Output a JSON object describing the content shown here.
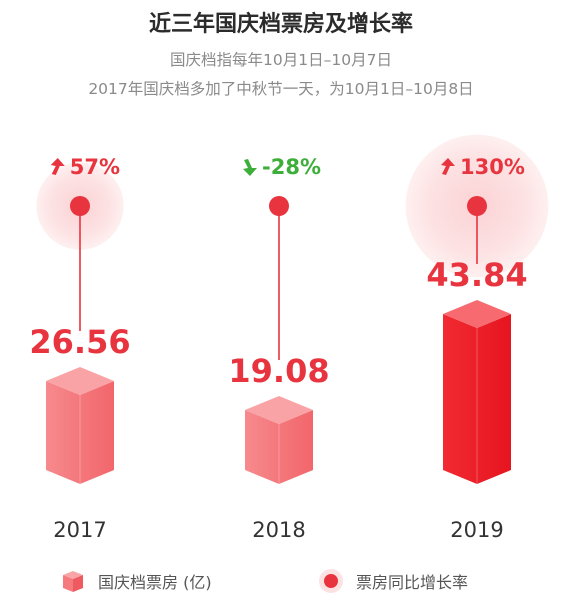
{
  "chart_data": {
    "type": "bar",
    "title": "近三年国庆档票房及增长率",
    "subtitle_lines": [
      "国庆档指每年10月1日–10月7日",
      "2017年国庆档多加了中秋节一天，为10月1日–10月8日"
    ],
    "categories": [
      "2017",
      "2018",
      "2019"
    ],
    "series": [
      {
        "name": "国庆档票房 (亿)",
        "values": [
          26.56,
          19.08,
          43.84
        ],
        "value_labels": [
          "26.56",
          "19.08",
          "43.84"
        ]
      },
      {
        "name": "票房同比增长率",
        "values": [
          57,
          -28,
          130
        ],
        "value_labels": [
          "57%",
          "-28%",
          "130%"
        ]
      }
    ],
    "colors": {
      "increase": "#e8343e",
      "decrease": "#3dae39",
      "bar_light": "#f47a7e",
      "bar_dark": "#ea1e28",
      "halo": "#fde7e8"
    }
  }
}
